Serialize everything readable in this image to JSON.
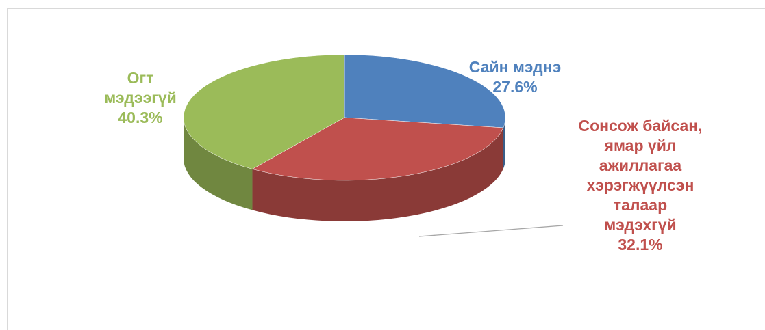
{
  "chart_data": {
    "type": "pie",
    "categories": [
      "Сайн мэднэ",
      "Сонсож байсан, ямар үйл ажиллагаа хэрэгжүүлсэн талаар мэдэхгүй",
      "Огт мэдээгүй"
    ],
    "values": [
      27.6,
      32.1,
      40.3
    ],
    "value_labels": [
      "27.6%",
      "32.1%",
      "40.3%"
    ],
    "colors": [
      "#4f81bd",
      "#c0504d",
      "#9bbb59"
    ]
  }
}
